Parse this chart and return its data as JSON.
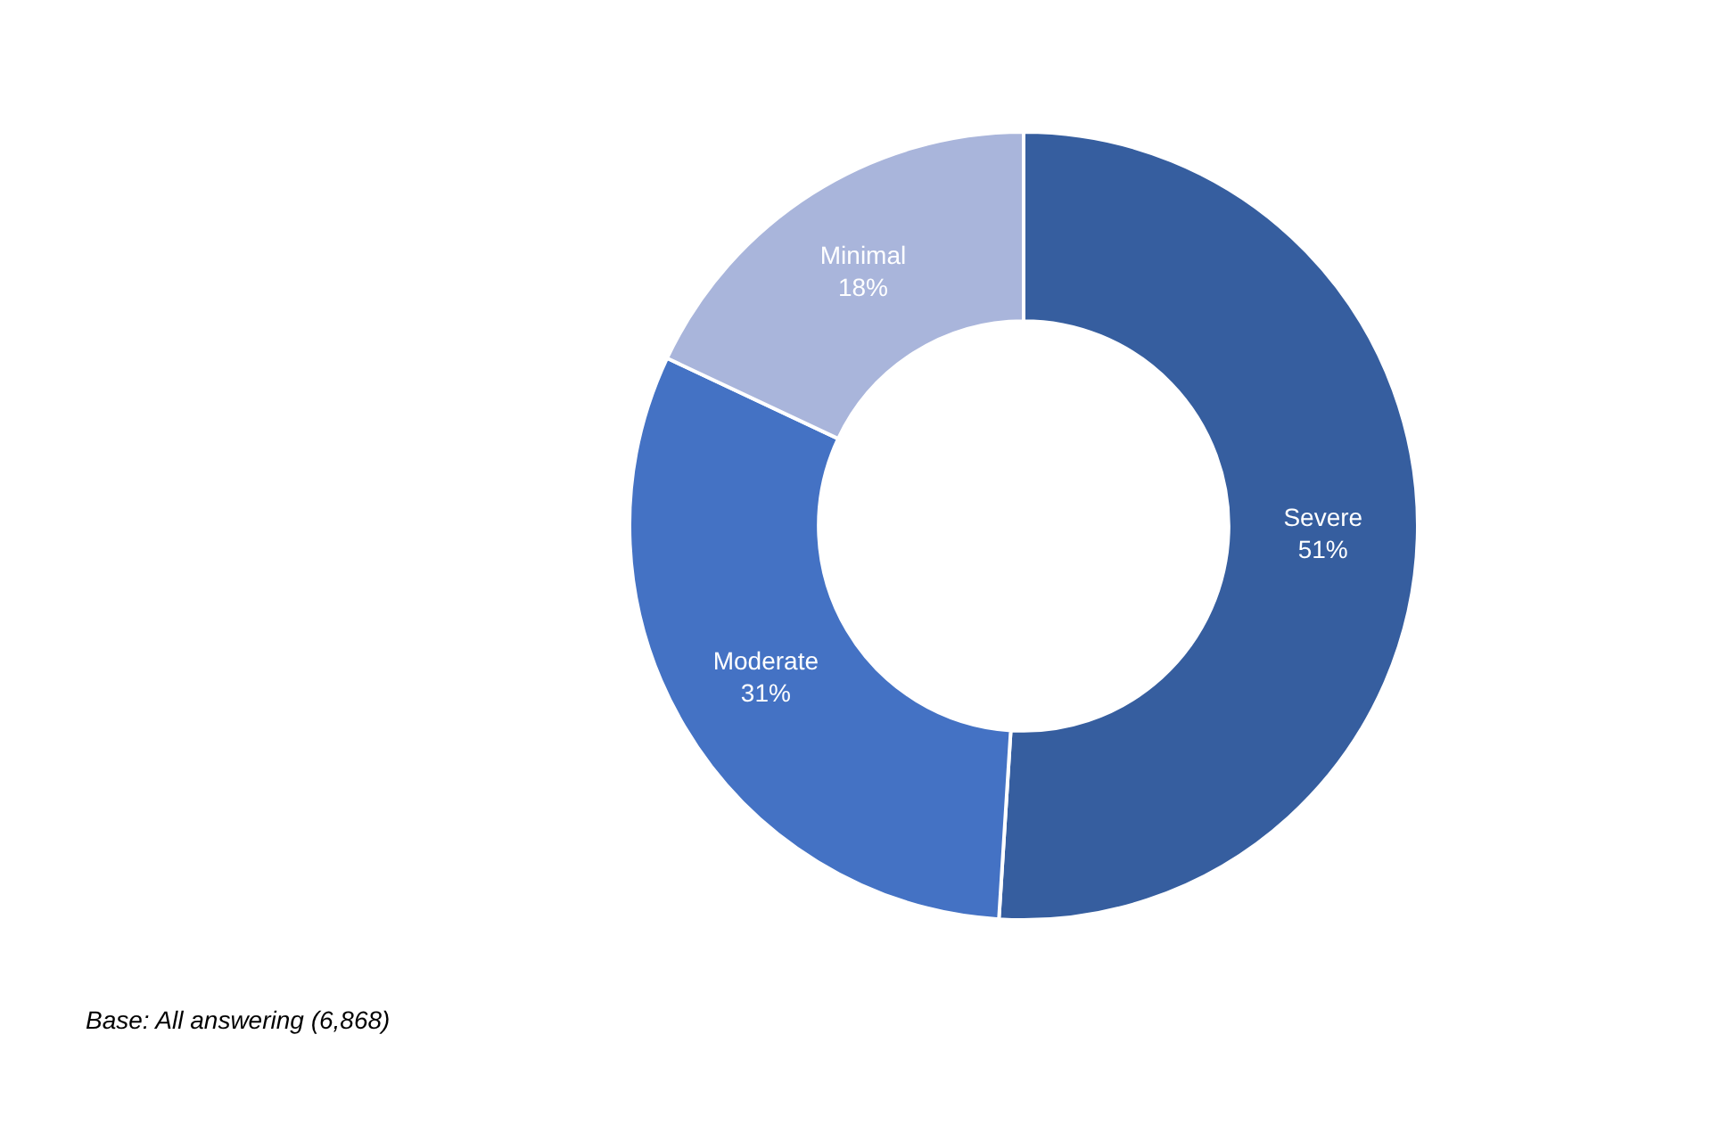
{
  "chart_data": {
    "type": "donut",
    "categories": [
      "Severe",
      "Moderate",
      "Minimal"
    ],
    "values": [
      51,
      31,
      18
    ],
    "value_labels": [
      "51%",
      "31%",
      "18%"
    ],
    "colors": [
      "#365e9f",
      "#4472c4",
      "#a9b5db"
    ],
    "legend": false,
    "annotations": [
      "Base: All answering (6,868)"
    ]
  }
}
